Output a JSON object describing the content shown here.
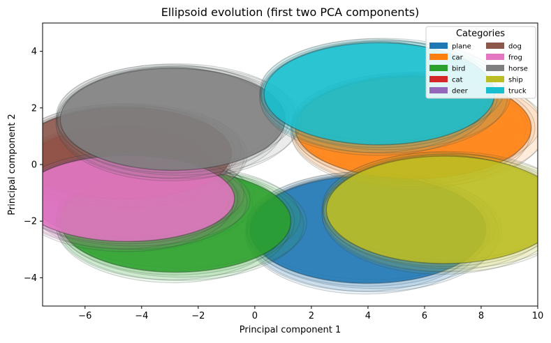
{
  "chart_data": {
    "type": "scatter",
    "title": "Ellipsoid evolution (first two PCA components)",
    "xlabel": "Principal component 1",
    "ylabel": "Principal component 2",
    "xlim": [
      -7.5,
      10
    ],
    "ylim": [
      -5,
      5
    ],
    "xticks": [
      -6,
      -4,
      -2,
      0,
      2,
      4,
      6,
      8,
      10
    ],
    "yticks": [
      -4,
      -2,
      0,
      2,
      4
    ],
    "grid": false,
    "legend": {
      "title": "Categories",
      "placement": "top-right",
      "columns": 2
    },
    "series": [
      {
        "name": "plane",
        "color": "#1f77b4",
        "center": [
          4.0,
          -2.3
        ],
        "semi_axes": [
          4.3,
          2.0
        ]
      },
      {
        "name": "car",
        "color": "#ff7f0e",
        "center": [
          5.6,
          1.3
        ],
        "semi_axes": [
          4.3,
          1.9
        ]
      },
      {
        "name": "bird",
        "color": "#2ca02c",
        "center": [
          -2.8,
          -2.0
        ],
        "semi_axes": [
          4.2,
          1.9
        ]
      },
      {
        "name": "cat",
        "color": "#d62728",
        "center": [
          -4.8,
          -0.2
        ],
        "semi_axes": [
          3.5,
          1.6
        ]
      },
      {
        "name": "deer",
        "color": "#9467bd",
        "center": [
          -4.2,
          -1.2
        ],
        "semi_axes": [
          3.8,
          1.6
        ]
      },
      {
        "name": "dog",
        "color": "#8c564b",
        "center": [
          -4.6,
          0.4
        ],
        "semi_axes": [
          3.9,
          1.7
        ]
      },
      {
        "name": "frog",
        "color": "#e377c2",
        "center": [
          -4.5,
          -1.2
        ],
        "semi_axes": [
          3.9,
          1.6
        ]
      },
      {
        "name": "horse",
        "color": "#7f7f7f",
        "center": [
          -2.9,
          1.6
        ],
        "semi_axes": [
          4.1,
          1.9
        ]
      },
      {
        "name": "ship",
        "color": "#bcbd22",
        "center": [
          6.7,
          -1.6
        ],
        "semi_axes": [
          4.3,
          2.0
        ]
      },
      {
        "name": "truck",
        "color": "#17becf",
        "center": [
          4.4,
          2.5
        ],
        "semi_axes": [
          4.2,
          1.9
        ]
      }
    ],
    "draw_order": [
      "plane",
      "car",
      "cat",
      "deer",
      "bird",
      "dog",
      "frog",
      "horse",
      "ship",
      "truck"
    ]
  }
}
